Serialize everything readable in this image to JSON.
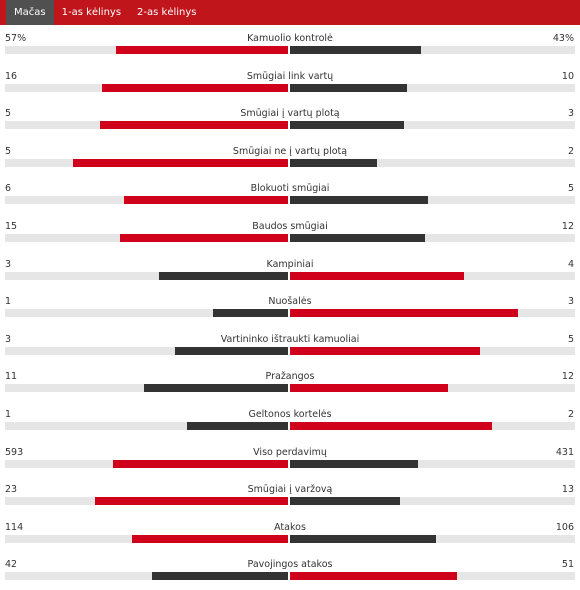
{
  "tabs": [
    {
      "label": "Mačas",
      "active": true
    },
    {
      "label": "1-as kėlinys",
      "active": false
    },
    {
      "label": "2-as kėlinys",
      "active": false
    }
  ],
  "colors": {
    "header": "#c0151b",
    "leader": "#d0021b",
    "trailer": "#333333",
    "track": "#e6e6e6",
    "active_tab": "#505050"
  },
  "stats": [
    {
      "label": "Kamuolio kontrolė",
      "home": "57%",
      "away": "43%",
      "home_val": 57,
      "away_val": 43
    },
    {
      "label": "Smūgiai link vartų",
      "home": "16",
      "away": "10",
      "home_val": 16,
      "away_val": 10
    },
    {
      "label": "Smūgiai į vartų plotą",
      "home": "5",
      "away": "3",
      "home_val": 5,
      "away_val": 3
    },
    {
      "label": "Smūgiai ne į vartų plotą",
      "home": "5",
      "away": "2",
      "home_val": 5,
      "away_val": 2
    },
    {
      "label": "Blokuoti smūgiai",
      "home": "6",
      "away": "5",
      "home_val": 6,
      "away_val": 5
    },
    {
      "label": "Baudos smūgiai",
      "home": "15",
      "away": "12",
      "home_val": 15,
      "away_val": 12
    },
    {
      "label": "Kampiniai",
      "home": "3",
      "away": "4",
      "home_val": 3,
      "away_val": 4
    },
    {
      "label": "Nuošalės",
      "home": "1",
      "away": "3",
      "home_val": 1,
      "away_val": 3
    },
    {
      "label": "Vartininko ištraukti kamuoliai",
      "home": "3",
      "away": "5",
      "home_val": 3,
      "away_val": 5
    },
    {
      "label": "Pražangos",
      "home": "11",
      "away": "12",
      "home_val": 11,
      "away_val": 12
    },
    {
      "label": "Geltonos kortelės",
      "home": "1",
      "away": "2",
      "home_val": 1,
      "away_val": 2
    },
    {
      "label": "Viso perdavimų",
      "home": "593",
      "away": "431",
      "home_val": 593,
      "away_val": 431
    },
    {
      "label": "Smūgiai į varžovą",
      "home": "23",
      "away": "13",
      "home_val": 23,
      "away_val": 13
    },
    {
      "label": "Atakos",
      "home": "114",
      "away": "106",
      "home_val": 114,
      "away_val": 106
    },
    {
      "label": "Pavojingos atakos",
      "home": "42",
      "away": "51",
      "home_val": 42,
      "away_val": 51
    }
  ]
}
